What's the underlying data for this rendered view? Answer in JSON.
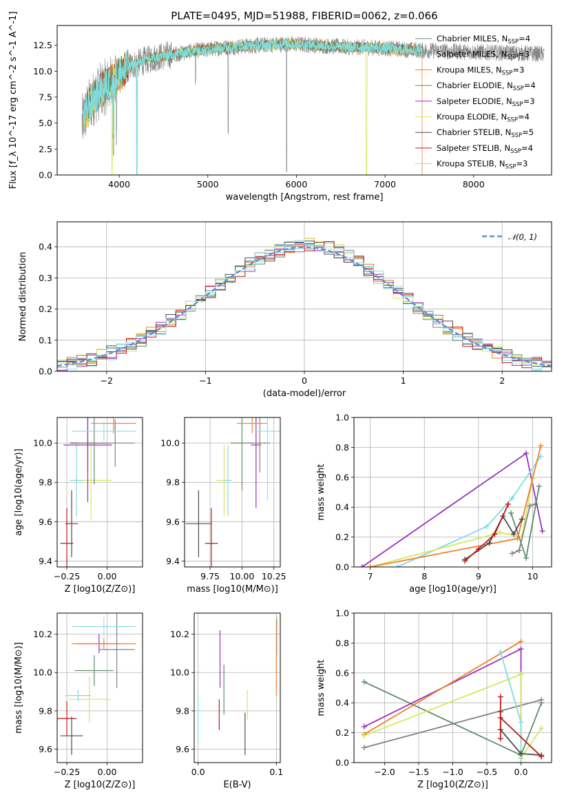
{
  "colors": [
    "#808080",
    "#7fdbe0",
    "#f07f2e",
    "#5f8a6a",
    "#9a2fb8",
    "#d4e85a",
    "#4a4a4a",
    "#c01818",
    "#8de0ea"
  ],
  "chart_data": [
    {
      "id": "spectrum",
      "type": "line",
      "title": "PLATE=0495, MJD=51988, FIBERID=0062, z=0.066",
      "xlabel": "wavelength [Angstrom, rest frame]",
      "ylabel": "Flux [f_λ 10^-17 erg cm^-2 s^-1 A^-1]",
      "xlim": [
        3300,
        8880
      ],
      "ylim": [
        0,
        14.4
      ],
      "xticks": [
        4000,
        5000,
        6000,
        7000,
        8000
      ],
      "yticks": [
        0.0,
        2.5,
        5.0,
        7.5,
        10.0,
        12.5
      ],
      "legend_position": "right",
      "legend": [
        "Chabrier MILES, N_SSP=4",
        "Salpeter MILES, N_SSP=3",
        "Kroupa MILES, N_SSP=3",
        "Chabrier ELODIE, N_SSP=4",
        "Salpeter ELODIE, N_SSP=3",
        "Kroupa ELODIE, N_SSP=4",
        "Chabrier STELIB, N_SSP=5",
        "Salpeter STELIB, N_SSP=4",
        "Kroupa STELIB, N_SSP=3"
      ],
      "envelope": {
        "x": [
          3580,
          3650,
          3720,
          3800,
          3900,
          4000,
          4100,
          4250,
          4400,
          4600,
          4800,
          5000,
          5200,
          5400,
          5600,
          5800,
          6000,
          6200,
          6400,
          6600,
          6800,
          7000,
          7200,
          7400
        ],
        "y": [
          5.0,
          6.5,
          7.5,
          8.2,
          8.8,
          9.6,
          10.4,
          10.9,
          11.3,
          11.6,
          11.9,
          12.1,
          12.3,
          12.4,
          12.5,
          12.6,
          12.6,
          12.5,
          12.4,
          12.3,
          12.3,
          12.2,
          12.1,
          12.0
        ]
      },
      "observed_end": 8800,
      "model_end": 7420
    },
    {
      "id": "residuals",
      "type": "bar",
      "xlabel": "(data-model)/error",
      "ylabel": "Normed distribution",
      "xlim": [
        -2.5,
        2.5
      ],
      "ylim": [
        0,
        0.48
      ],
      "xticks": [
        -2,
        -1,
        0,
        1,
        2
      ],
      "yticks": [
        0.0,
        0.1,
        0.2,
        0.3,
        0.4
      ],
      "legend": [
        "𝒩(0, 1)"
      ],
      "legend_position": "top-right",
      "bin_width": 0.1
    },
    {
      "id": "age-vs-z",
      "type": "scatter",
      "xlabel": "Z [log10(Z/Z⊙)]",
      "ylabel": "age  [log10(age/yr)]",
      "xlim": [
        -0.31,
        0.22
      ],
      "ylim": [
        9.37,
        10.13
      ],
      "xticks": [
        -0.25,
        0.0
      ],
      "yticks": [
        9.4,
        9.6,
        9.8,
        10.0
      ],
      "points": [
        {
          "x": -0.22,
          "y": 9.59,
          "xerr": 0.04,
          "yerr": 0.17,
          "c": 6
        },
        {
          "x": -0.25,
          "y": 9.49,
          "xerr": 0.04,
          "yerr": 0.18,
          "c": 7
        },
        {
          "x": -0.1,
          "y": 9.81,
          "xerr": 0.13,
          "yerr": 0.2,
          "c": 5
        },
        {
          "x": -0.19,
          "y": 9.81,
          "xerr": 0.04,
          "yerr": 0.18,
          "c": 1
        },
        {
          "x": -0.12,
          "y": 10.0,
          "xerr": 0.11,
          "yerr": 0.14,
          "c": 6
        },
        {
          "x": -0.08,
          "y": 10.0,
          "xerr": 0.1,
          "yerr": 0.21,
          "c": 3
        },
        {
          "x": -0.12,
          "y": 9.99,
          "xerr": 0.15,
          "yerr": 0.29,
          "c": 4
        },
        {
          "x": 0.05,
          "y": 10.0,
          "xerr": 0.12,
          "yerr": 0.12,
          "c": 0
        },
        {
          "x": 0.04,
          "y": 10.1,
          "xerr": 0.14,
          "yerr": 0.05,
          "c": 2
        },
        {
          "x": -0.02,
          "y": 10.06,
          "xerr": 0.2,
          "yerr": 0.05,
          "c": 8
        }
      ]
    },
    {
      "id": "age-vs-mass",
      "type": "scatter",
      "xlabel": "mass [log10(M/M⊙)]",
      "ylabel": "",
      "xlim": [
        9.55,
        10.3
      ],
      "ylim": [
        9.37,
        10.13
      ],
      "xticks": [
        9.75,
        10.0,
        10.25
      ],
      "yticks": [
        9.4,
        9.6,
        9.8,
        10.0
      ],
      "points": [
        {
          "x": 9.66,
          "y": 9.59,
          "xerr": 0.1,
          "yerr": 0.17,
          "c": 6
        },
        {
          "x": 9.76,
          "y": 9.49,
          "xerr": 0.05,
          "yerr": 0.18,
          "c": 7
        },
        {
          "x": 9.86,
          "y": 9.81,
          "xerr": 0.06,
          "yerr": 0.18,
          "c": 5
        },
        {
          "x": 9.89,
          "y": 9.81,
          "xerr": 0.03,
          "yerr": 0.18,
          "c": 1
        },
        {
          "x": 10.0,
          "y": 10.0,
          "xerr": 0.09,
          "yerr": 0.24,
          "c": 3
        },
        {
          "x": 10.11,
          "y": 9.99,
          "xerr": 0.04,
          "yerr": 0.32,
          "c": 4
        },
        {
          "x": 10.14,
          "y": 10.0,
          "xerr": 0.08,
          "yerr": 0.15,
          "c": 0
        },
        {
          "x": 10.08,
          "y": 10.1,
          "xerr": 0.12,
          "yerr": 0.05,
          "c": 2
        },
        {
          "x": 10.2,
          "y": 10.06,
          "xerr": 0.1,
          "yerr": 0.35,
          "c": 8
        }
      ]
    },
    {
      "id": "weight-vs-age",
      "type": "line",
      "xlabel": "age  [log10(age/yr)]",
      "ylabel": "mass weight",
      "xlim": [
        6.7,
        10.35
      ],
      "ylim": [
        0,
        1.0
      ],
      "xticks": [
        7,
        8,
        9,
        10
      ],
      "yticks": [
        0.0,
        0.2,
        0.4,
        0.6,
        0.8,
        1.0
      ],
      "series": [
        {
          "c": 4,
          "x": [
            6.85,
            9.88,
            10.18
          ],
          "y": [
            0.0,
            0.76,
            0.24
          ]
        },
        {
          "c": 1,
          "x": [
            7.5,
            9.15,
            9.62,
            10.15
          ],
          "y": [
            0.0,
            0.27,
            0.46,
            0.74
          ]
        },
        {
          "c": 5,
          "x": [
            7.0,
            9.4,
            9.8,
            10.0
          ],
          "y": [
            0.0,
            0.23,
            0.2,
            0.59
          ]
        },
        {
          "c": 0,
          "x": [
            9.62,
            9.75,
            9.95,
            10.05
          ],
          "y": [
            0.09,
            0.11,
            0.41,
            0.42
          ]
        },
        {
          "c": 3,
          "x": [
            9.6,
            9.88,
            10.12
          ],
          "y": [
            0.36,
            0.06,
            0.54
          ]
        },
        {
          "c": 2,
          "x": [
            7.0,
            9.72,
            10.15
          ],
          "y": [
            0.0,
            0.19,
            0.81
          ]
        },
        {
          "c": 6,
          "x": [
            8.75,
            9.2,
            9.45,
            9.65,
            9.8
          ],
          "y": [
            0.05,
            0.16,
            0.34,
            0.22,
            0.32
          ]
        },
        {
          "c": 7,
          "x": [
            8.75,
            9.0,
            9.3,
            9.55
          ],
          "y": [
            0.04,
            0.12,
            0.22,
            0.42
          ]
        }
      ]
    },
    {
      "id": "mass-vs-z",
      "type": "scatter",
      "xlabel": "Z [log10(Z/Z⊙)]",
      "ylabel": "mass [log10(M/M⊙)]",
      "xlim": [
        -0.31,
        0.22
      ],
      "ylim": [
        9.53,
        10.31
      ],
      "xticks": [
        -0.25,
        0.0
      ],
      "yticks": [
        9.6,
        9.8,
        10.0,
        10.2
      ],
      "points": [
        {
          "x": -0.22,
          "y": 9.67,
          "xerr": 0.07,
          "yerr": 0.1,
          "c": 6
        },
        {
          "x": -0.25,
          "y": 9.76,
          "xerr": 0.06,
          "yerr": 0.09,
          "c": 7
        },
        {
          "x": -0.11,
          "y": 9.86,
          "xerr": 0.13,
          "yerr": 0.12,
          "c": 5
        },
        {
          "x": -0.18,
          "y": 9.88,
          "xerr": 0.08,
          "yerr": 0.03,
          "c": 1
        },
        {
          "x": -0.08,
          "y": 10.01,
          "xerr": 0.12,
          "yerr": 0.08,
          "c": 3
        },
        {
          "x": -0.05,
          "y": 10.15,
          "xerr": 0.13,
          "yerr": 0.05,
          "c": 4
        },
        {
          "x": 0.06,
          "y": 10.12,
          "xerr": 0.11,
          "yerr": 0.2,
          "c": 0
        },
        {
          "x": -0.02,
          "y": 10.15,
          "xerr": 0.2,
          "yerr": 0.03,
          "c": 2
        },
        {
          "x": -0.02,
          "y": 10.24,
          "xerr": 0.2,
          "yerr": 0.05,
          "c": 8
        }
      ]
    },
    {
      "id": "mass-vs-ebv",
      "type": "scatter",
      "xlabel": "E(B-V)",
      "ylabel": "",
      "xlim": [
        -0.005,
        0.105
      ],
      "ylim": [
        9.53,
        10.31
      ],
      "xticks": [
        0.0,
        0.1
      ],
      "yticks": [
        9.6,
        9.8,
        10.0,
        10.2
      ],
      "points": [
        {
          "x": 0.0,
          "y": 9.75,
          "yerr": 0.12,
          "c": 1
        },
        {
          "x": 0.027,
          "y": 9.78,
          "yerr": 0.08,
          "c": 7
        },
        {
          "x": 0.028,
          "y": 10.07,
          "yerr": 0.15,
          "c": 4
        },
        {
          "x": 0.033,
          "y": 9.91,
          "yerr": 0.13,
          "c": 3
        },
        {
          "x": 0.06,
          "y": 9.68,
          "yerr": 0.11,
          "c": 6
        },
        {
          "x": 0.063,
          "y": 9.83,
          "yerr": 0.08,
          "c": 5
        },
        {
          "x": 0.1,
          "y": 10.08,
          "yerr": 0.2,
          "c": 2
        },
        {
          "x": 0.101,
          "y": 10.19,
          "yerr": 0.1,
          "c": 8
        }
      ]
    },
    {
      "id": "weight-vs-z",
      "type": "line",
      "xlabel": "Z [log10(Z/Z⊙)]",
      "ylabel": "mass weight",
      "xlim": [
        -2.45,
        0.45
      ],
      "ylim": [
        0,
        1.0
      ],
      "xticks": [
        -2.0,
        -1.5,
        -1.0,
        -0.5,
        0.0
      ],
      "yticks": [
        0.0,
        0.2,
        0.4,
        0.6,
        0.8,
        1.0
      ],
      "series": [
        {
          "c": 3,
          "x": [
            -2.3,
            0.0,
            0.3
          ],
          "y": [
            0.54,
            0.05,
            0.4
          ]
        },
        {
          "c": 0,
          "x": [
            -2.3,
            0.3
          ],
          "y": [
            0.1,
            0.42
          ]
        },
        {
          "c": 4,
          "x": [
            -2.3,
            0.0,
            0.0
          ],
          "y": [
            0.24,
            0.76,
            0.03
          ]
        },
        {
          "c": 2,
          "x": [
            -2.3,
            0.0
          ],
          "y": [
            0.19,
            0.81
          ]
        },
        {
          "c": 5,
          "x": [
            -2.3,
            0.0,
            0.0,
            0.3
          ],
          "y": [
            0.18,
            0.59,
            0.03,
            0.23
          ]
        },
        {
          "c": 1,
          "x": [
            -0.3,
            0.0,
            0.0
          ],
          "y": [
            0.74,
            0.27,
            0.0
          ]
        },
        {
          "c": 6,
          "x": [
            -0.3,
            -0.3,
            0.0,
            0.3
          ],
          "y": [
            0.34,
            0.22,
            0.06,
            0.05
          ]
        },
        {
          "c": 7,
          "x": [
            -0.3,
            -0.3,
            -0.3,
            0.3
          ],
          "y": [
            0.16,
            0.44,
            0.3,
            0.04
          ]
        }
      ]
    }
  ]
}
